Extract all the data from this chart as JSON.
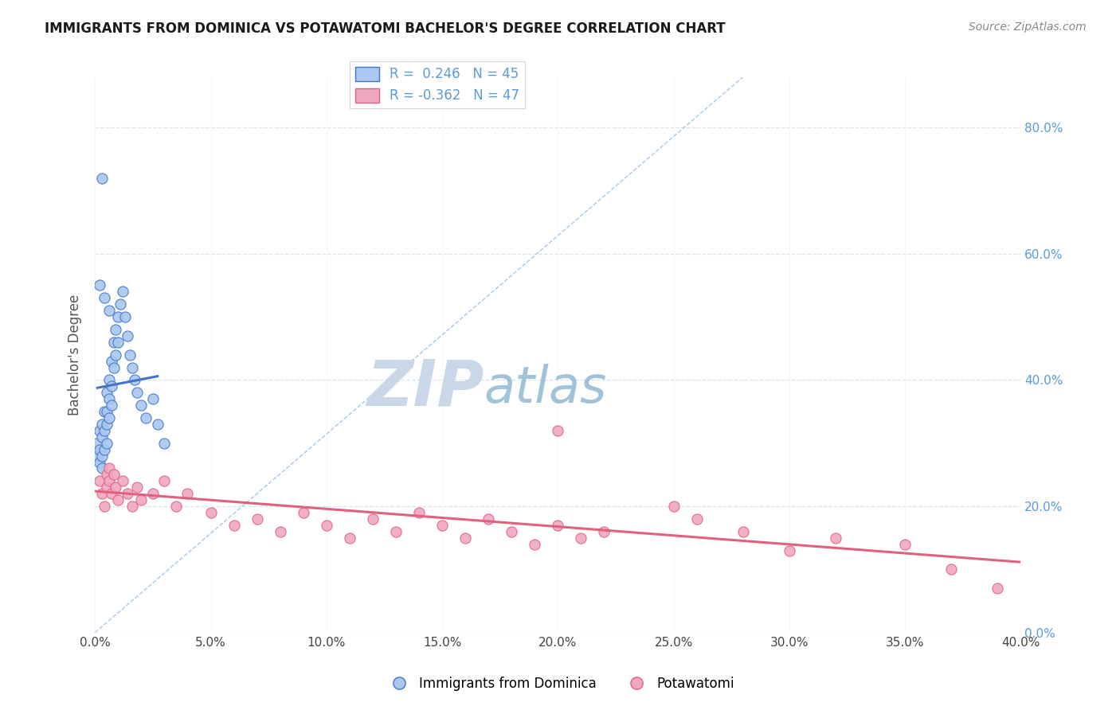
{
  "title": "IMMIGRANTS FROM DOMINICA VS POTAWATOMI BACHELOR'S DEGREE CORRELATION CHART",
  "source": "Source: ZipAtlas.com",
  "xlabel_label": "Immigrants from Dominica",
  "ylabel_label": "Bachelor's Degree",
  "legend_label2": "Potawatomi",
  "r1": 0.246,
  "n1": 45,
  "r2": -0.362,
  "n2": 47,
  "color_blue": "#a8c8f0",
  "color_pink": "#f0a8c0",
  "line_blue": "#4472c4",
  "line_pink": "#e06080",
  "line_diag_color": "#80b0e0",
  "xlim": [
    0.0,
    0.4
  ],
  "ylim": [
    0.0,
    0.88
  ],
  "xticks": [
    0.0,
    0.05,
    0.1,
    0.15,
    0.2,
    0.25,
    0.3,
    0.35,
    0.4
  ],
  "yticks": [
    0.0,
    0.2,
    0.4,
    0.6,
    0.8
  ],
  "blue_x": [
    0.001,
    0.001,
    0.002,
    0.002,
    0.002,
    0.003,
    0.003,
    0.003,
    0.003,
    0.004,
    0.004,
    0.004,
    0.005,
    0.005,
    0.005,
    0.005,
    0.006,
    0.006,
    0.006,
    0.007,
    0.007,
    0.007,
    0.008,
    0.008,
    0.009,
    0.009,
    0.01,
    0.01,
    0.011,
    0.012,
    0.013,
    0.014,
    0.015,
    0.016,
    0.017,
    0.018,
    0.02,
    0.022,
    0.025,
    0.027,
    0.03,
    0.002,
    0.004,
    0.006,
    0.003
  ],
  "blue_y": [
    0.3,
    0.28,
    0.32,
    0.29,
    0.27,
    0.33,
    0.31,
    0.28,
    0.26,
    0.35,
    0.32,
    0.29,
    0.38,
    0.35,
    0.33,
    0.3,
    0.4,
    0.37,
    0.34,
    0.43,
    0.39,
    0.36,
    0.46,
    0.42,
    0.48,
    0.44,
    0.5,
    0.46,
    0.52,
    0.54,
    0.5,
    0.47,
    0.44,
    0.42,
    0.4,
    0.38,
    0.36,
    0.34,
    0.37,
    0.33,
    0.3,
    0.55,
    0.53,
    0.51,
    0.72
  ],
  "pink_x": [
    0.002,
    0.003,
    0.004,
    0.005,
    0.005,
    0.006,
    0.006,
    0.007,
    0.008,
    0.009,
    0.01,
    0.012,
    0.014,
    0.016,
    0.018,
    0.02,
    0.025,
    0.03,
    0.035,
    0.04,
    0.05,
    0.06,
    0.07,
    0.08,
    0.09,
    0.1,
    0.11,
    0.12,
    0.13,
    0.14,
    0.15,
    0.16,
    0.17,
    0.18,
    0.19,
    0.2,
    0.21,
    0.22,
    0.25,
    0.26,
    0.28,
    0.3,
    0.32,
    0.35,
    0.37,
    0.39,
    0.2
  ],
  "pink_y": [
    0.24,
    0.22,
    0.2,
    0.25,
    0.23,
    0.26,
    0.24,
    0.22,
    0.25,
    0.23,
    0.21,
    0.24,
    0.22,
    0.2,
    0.23,
    0.21,
    0.22,
    0.24,
    0.2,
    0.22,
    0.19,
    0.17,
    0.18,
    0.16,
    0.19,
    0.17,
    0.15,
    0.18,
    0.16,
    0.19,
    0.17,
    0.15,
    0.18,
    0.16,
    0.14,
    0.17,
    0.15,
    0.16,
    0.2,
    0.18,
    0.16,
    0.13,
    0.15,
    0.14,
    0.1,
    0.07,
    0.32
  ],
  "watermark_zip": "ZIP",
  "watermark_atlas": "atlas",
  "watermark_color_zip": "#c8d8e8",
  "watermark_color_atlas": "#8ab4d0",
  "background_color": "#ffffff",
  "grid_color": "#d8e4f0"
}
